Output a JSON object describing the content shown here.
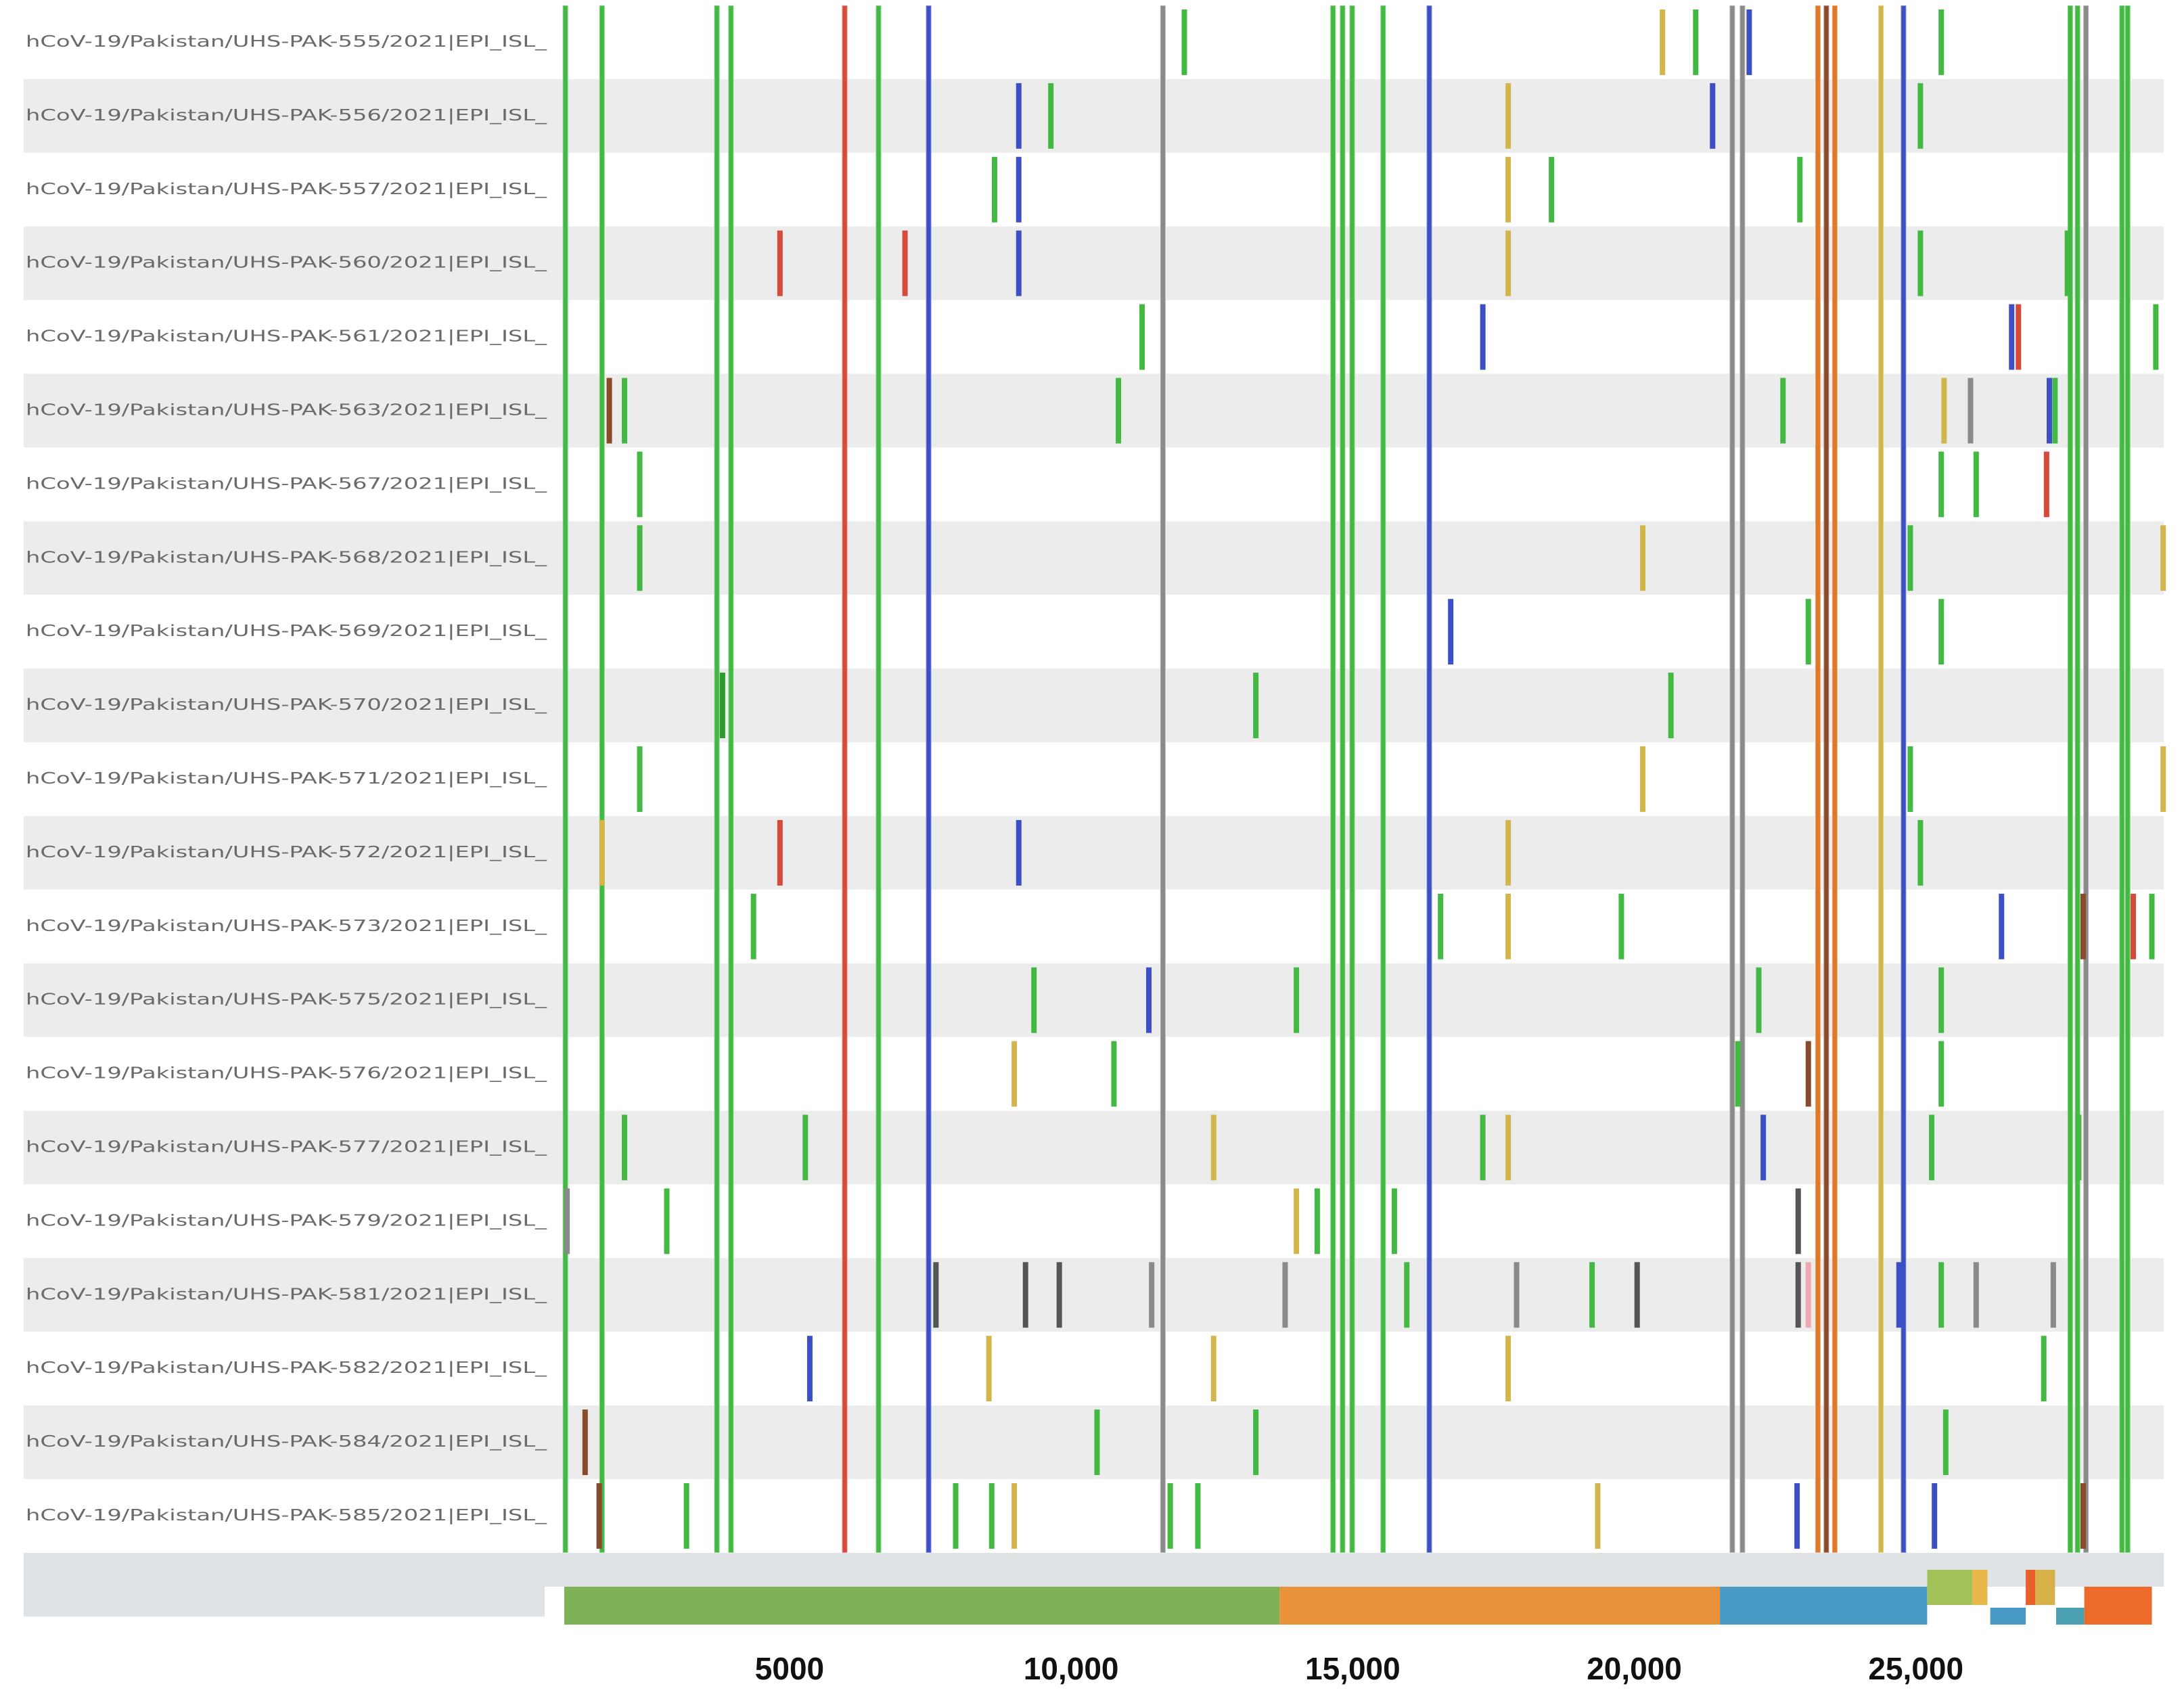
{
  "chart_data": {
    "type": "mutation-map",
    "xlim": [
      1000,
      29400
    ],
    "xticks": [
      5000,
      {
        "value": 10000,
        "label": "10,000"
      },
      {
        "value": 15000,
        "label": "15,000"
      },
      {
        "value": 20000,
        "label": "20,000"
      },
      {
        "value": 25000,
        "label": "25,000"
      }
    ],
    "shared": [
      {
        "pos": 1020,
        "color": "#43b943"
      },
      {
        "pos": 1670,
        "color": "#43b943"
      },
      {
        "pos": 3710,
        "color": "#43b943"
      },
      {
        "pos": 3960,
        "color": "#43b943"
      },
      {
        "pos": 5980,
        "color": "#d64a3c"
      },
      {
        "pos": 6580,
        "color": "#43b943"
      },
      {
        "pos": 7470,
        "color": "#3c4fc4"
      },
      {
        "pos": 11630,
        "color": "#8a8a8a"
      },
      {
        "pos": 14650,
        "color": "#43b943"
      },
      {
        "pos": 14820,
        "color": "#43b943"
      },
      {
        "pos": 14990,
        "color": "#43b943"
      },
      {
        "pos": 15540,
        "color": "#43b943"
      },
      {
        "pos": 16360,
        "color": "#3c4fc4"
      },
      {
        "pos": 21740,
        "color": "#8a8a8a"
      },
      {
        "pos": 21920,
        "color": "#8a8a8a"
      },
      {
        "pos": 23260,
        "color": "#e0782a"
      },
      {
        "pos": 23410,
        "color": "#8a4a2c"
      },
      {
        "pos": 23560,
        "color": "#e0782a"
      },
      {
        "pos": 24380,
        "color": "#d2b64c"
      },
      {
        "pos": 24780,
        "color": "#3c4fc4"
      },
      {
        "pos": 27740,
        "color": "#43b943"
      },
      {
        "pos": 27870,
        "color": "#43b943"
      },
      {
        "pos": 28020,
        "color": "#8a8a8a"
      },
      {
        "pos": 28660,
        "color": "#43b943"
      },
      {
        "pos": 28760,
        "color": "#43b943"
      }
    ],
    "rows": [
      {
        "label": "hCoV-19/Pakistan/UHS-PAK-555/2021|EPI_ISL_",
        "mutations": [
          {
            "pos": 12010,
            "color": "#43b943"
          },
          {
            "pos": 20500,
            "color": "#d2b64c"
          },
          {
            "pos": 21090,
            "color": "#43b943"
          },
          {
            "pos": 22040,
            "color": "#3c4fc4"
          },
          {
            "pos": 25450,
            "color": "#43b943"
          }
        ]
      },
      {
        "label": "hCoV-19/Pakistan/UHS-PAK-556/2021|EPI_ISL_",
        "mutations": [
          {
            "pos": 9070,
            "color": "#3c4fc4"
          },
          {
            "pos": 9640,
            "color": "#43b943"
          },
          {
            "pos": 17760,
            "color": "#d2b64c"
          },
          {
            "pos": 21390,
            "color": "#3c4fc4"
          },
          {
            "pos": 25080,
            "color": "#43b943"
          }
        ]
      },
      {
        "label": "hCoV-19/Pakistan/UHS-PAK-557/2021|EPI_ISL_",
        "mutations": [
          {
            "pos": 8640,
            "color": "#43b943"
          },
          {
            "pos": 9070,
            "color": "#3c4fc4"
          },
          {
            "pos": 17760,
            "color": "#d2b64c"
          },
          {
            "pos": 18530,
            "color": "#43b943"
          },
          {
            "pos": 22940,
            "color": "#43b943"
          }
        ]
      },
      {
        "label": "hCoV-19/Pakistan/UHS-PAK-560/2021|EPI_ISL_",
        "mutations": [
          {
            "pos": 4830,
            "color": "#d64a3c"
          },
          {
            "pos": 7050,
            "color": "#d64a3c"
          },
          {
            "pos": 9070,
            "color": "#3c4fc4"
          },
          {
            "pos": 17760,
            "color": "#d2b64c"
          },
          {
            "pos": 25080,
            "color": "#43b943"
          },
          {
            "pos": 27690,
            "color": "#43b943"
          }
        ]
      },
      {
        "label": "hCoV-19/Pakistan/UHS-PAK-561/2021|EPI_ISL_",
        "mutations": [
          {
            "pos": 11260,
            "color": "#43b943"
          },
          {
            "pos": 17310,
            "color": "#3c4fc4"
          },
          {
            "pos": 26700,
            "color": "#3c4fc4"
          },
          {
            "pos": 26820,
            "color": "#d64a3c"
          },
          {
            "pos": 29260,
            "color": "#43b943"
          }
        ]
      },
      {
        "label": "hCoV-19/Pakistan/UHS-PAK-563/2021|EPI_ISL_",
        "mutations": [
          {
            "pos": 1800,
            "color": "#8a4a2c"
          },
          {
            "pos": 2070,
            "color": "#43b943"
          },
          {
            "pos": 10840,
            "color": "#43b943"
          },
          {
            "pos": 22640,
            "color": "#43b943"
          },
          {
            "pos": 25500,
            "color": "#d2b64c"
          },
          {
            "pos": 25970,
            "color": "#8a8a8a"
          },
          {
            "pos": 27370,
            "color": "#3c4fc4"
          },
          {
            "pos": 27470,
            "color": "#43b943"
          }
        ]
      },
      {
        "label": "hCoV-19/Pakistan/UHS-PAK-567/2021|EPI_ISL_",
        "mutations": [
          {
            "pos": 2340,
            "color": "#43b943"
          },
          {
            "pos": 25450,
            "color": "#43b943"
          },
          {
            "pos": 26070,
            "color": "#43b943"
          },
          {
            "pos": 27320,
            "color": "#d64a3c"
          }
        ]
      },
      {
        "label": "hCoV-19/Pakistan/UHS-PAK-568/2021|EPI_ISL_",
        "mutations": [
          {
            "pos": 2340,
            "color": "#43b943"
          },
          {
            "pos": 20150,
            "color": "#d2b64c"
          },
          {
            "pos": 24900,
            "color": "#43b943"
          },
          {
            "pos": 29390,
            "color": "#d2b64c"
          }
        ]
      },
      {
        "label": "hCoV-19/Pakistan/UHS-PAK-569/2021|EPI_ISL_",
        "mutations": [
          {
            "pos": 16740,
            "color": "#3c4fc4"
          },
          {
            "pos": 23090,
            "color": "#43b943"
          },
          {
            "pos": 25450,
            "color": "#43b943"
          }
        ]
      },
      {
        "label": "hCoV-19/Pakistan/UHS-PAK-570/2021|EPI_ISL_",
        "mutations": [
          {
            "pos": 3810,
            "color": "#2e9a2e"
          },
          {
            "pos": 13280,
            "color": "#43b943"
          },
          {
            "pos": 20650,
            "color": "#43b943"
          }
        ]
      },
      {
        "label": "hCoV-19/Pakistan/UHS-PAK-571/2021|EPI_ISL_",
        "mutations": [
          {
            "pos": 2340,
            "color": "#43b943"
          },
          {
            "pos": 20150,
            "color": "#d2b64c"
          },
          {
            "pos": 24900,
            "color": "#43b943"
          },
          {
            "pos": 29390,
            "color": "#d2b64c"
          }
        ]
      },
      {
        "label": "hCoV-19/Pakistan/UHS-PAK-572/2021|EPI_ISL_",
        "mutations": [
          {
            "pos": 1670,
            "color": "#d2b64c"
          },
          {
            "pos": 4830,
            "color": "#d64a3c"
          },
          {
            "pos": 9070,
            "color": "#3c4fc4"
          },
          {
            "pos": 17760,
            "color": "#d2b64c"
          },
          {
            "pos": 25080,
            "color": "#43b943"
          }
        ]
      },
      {
        "label": "hCoV-19/Pakistan/UHS-PAK-573/2021|EPI_ISL_",
        "mutations": [
          {
            "pos": 4360,
            "color": "#43b943"
          },
          {
            "pos": 16560,
            "color": "#43b943"
          },
          {
            "pos": 17760,
            "color": "#d2b64c"
          },
          {
            "pos": 19770,
            "color": "#43b943"
          },
          {
            "pos": 26520,
            "color": "#3c4fc4"
          },
          {
            "pos": 27970,
            "color": "#8a4a2c"
          },
          {
            "pos": 28860,
            "color": "#d64a3c"
          },
          {
            "pos": 29190,
            "color": "#43b943"
          }
        ]
      },
      {
        "label": "hCoV-19/Pakistan/UHS-PAK-575/2021|EPI_ISL_",
        "mutations": [
          {
            "pos": 9340,
            "color": "#43b943"
          },
          {
            "pos": 11380,
            "color": "#3c4fc4"
          },
          {
            "pos": 14000,
            "color": "#43b943"
          },
          {
            "pos": 22210,
            "color": "#43b943"
          },
          {
            "pos": 25450,
            "color": "#43b943"
          }
        ]
      },
      {
        "label": "hCoV-19/Pakistan/UHS-PAK-576/2021|EPI_ISL_",
        "mutations": [
          {
            "pos": 8990,
            "color": "#d2b64c"
          },
          {
            "pos": 10760,
            "color": "#43b943"
          },
          {
            "pos": 21840,
            "color": "#43b943"
          },
          {
            "pos": 23090,
            "color": "#8a4a2c"
          },
          {
            "pos": 25450,
            "color": "#43b943"
          }
        ]
      },
      {
        "label": "hCoV-19/Pakistan/UHS-PAK-577/2021|EPI_ISL_",
        "mutations": [
          {
            "pos": 2070,
            "color": "#43b943"
          },
          {
            "pos": 5280,
            "color": "#43b943"
          },
          {
            "pos": 12530,
            "color": "#d2b64c"
          },
          {
            "pos": 17310,
            "color": "#43b943"
          },
          {
            "pos": 17760,
            "color": "#d2b64c"
          },
          {
            "pos": 22290,
            "color": "#3c4fc4"
          },
          {
            "pos": 25280,
            "color": "#43b943"
          },
          {
            "pos": 27890,
            "color": "#43b943"
          }
        ]
      },
      {
        "label": "hCoV-19/Pakistan/UHS-PAK-579/2021|EPI_ISL_",
        "mutations": [
          {
            "pos": 1050,
            "color": "#8a8a8a"
          },
          {
            "pos": 2820,
            "color": "#43b943"
          },
          {
            "pos": 14000,
            "color": "#d2b64c"
          },
          {
            "pos": 14370,
            "color": "#43b943"
          },
          {
            "pos": 15740,
            "color": "#43b943"
          },
          {
            "pos": 22910,
            "color": "#555555"
          }
        ]
      },
      {
        "label": "hCoV-19/Pakistan/UHS-PAK-581/2021|EPI_ISL_",
        "mutations": [
          {
            "pos": 7600,
            "color": "#555555"
          },
          {
            "pos": 9190,
            "color": "#555555"
          },
          {
            "pos": 9790,
            "color": "#555555"
          },
          {
            "pos": 11430,
            "color": "#8a8a8a"
          },
          {
            "pos": 13800,
            "color": "#8a8a8a"
          },
          {
            "pos": 15960,
            "color": "#43b943"
          },
          {
            "pos": 17910,
            "color": "#8a8a8a"
          },
          {
            "pos": 19250,
            "color": "#43b943"
          },
          {
            "pos": 20050,
            "color": "#555555"
          },
          {
            "pos": 22910,
            "color": "#555555"
          },
          {
            "pos": 23090,
            "color": "#f2a7b5"
          },
          {
            "pos": 24700,
            "color": "#3c4fc4"
          },
          {
            "pos": 25450,
            "color": "#43b943"
          },
          {
            "pos": 26070,
            "color": "#8a8a8a"
          },
          {
            "pos": 27440,
            "color": "#8a8a8a"
          }
        ]
      },
      {
        "label": "hCoV-19/Pakistan/UHS-PAK-582/2021|EPI_ISL_",
        "mutations": [
          {
            "pos": 5360,
            "color": "#3c4fc4"
          },
          {
            "pos": 8540,
            "color": "#d2b64c"
          },
          {
            "pos": 12530,
            "color": "#d2b64c"
          },
          {
            "pos": 17760,
            "color": "#d2b64c"
          },
          {
            "pos": 27270,
            "color": "#43b943"
          }
        ]
      },
      {
        "label": "hCoV-19/Pakistan/UHS-PAK-584/2021|EPI_ISL_",
        "mutations": [
          {
            "pos": 1370,
            "color": "#8a4a2c"
          },
          {
            "pos": 10460,
            "color": "#43b943"
          },
          {
            "pos": 13280,
            "color": "#43b943"
          },
          {
            "pos": 25530,
            "color": "#43b943"
          }
        ]
      },
      {
        "label": "hCoV-19/Pakistan/UHS-PAK-585/2021|EPI_ISL_",
        "mutations": [
          {
            "pos": 1620,
            "color": "#8a4a2c"
          },
          {
            "pos": 3170,
            "color": "#43b943"
          },
          {
            "pos": 7950,
            "color": "#43b943"
          },
          {
            "pos": 8590,
            "color": "#43b943"
          },
          {
            "pos": 8990,
            "color": "#d2b64c"
          },
          {
            "pos": 11760,
            "color": "#43b943"
          },
          {
            "pos": 12250,
            "color": "#43b943"
          },
          {
            "pos": 19350,
            "color": "#d2b64c"
          },
          {
            "pos": 22890,
            "color": "#3c4fc4"
          },
          {
            "pos": 25330,
            "color": "#3c4fc4"
          },
          {
            "pos": 27970,
            "color": "#8a4a2c"
          }
        ]
      }
    ],
    "genes": [
      {
        "start": 1000,
        "end": 13700,
        "color": "#7db356",
        "lane": "main"
      },
      {
        "start": 13700,
        "end": 21520,
        "color": "#e8933a",
        "lane": "main"
      },
      {
        "start": 21520,
        "end": 25200,
        "color": "#4a9ac6",
        "lane": "main"
      },
      {
        "start": 25200,
        "end": 26000,
        "color": "#a4c25a",
        "lane": "upper"
      },
      {
        "start": 26000,
        "end": 26270,
        "color": "#e8b84a",
        "lane": "upper"
      },
      {
        "start": 26320,
        "end": 26950,
        "color": "#4a9ac6",
        "lane": "lower"
      },
      {
        "start": 26950,
        "end": 27120,
        "color": "#e8602a",
        "lane": "upper"
      },
      {
        "start": 27120,
        "end": 27470,
        "color": "#d8b04a",
        "lane": "upper"
      },
      {
        "start": 27490,
        "end": 27990,
        "color": "#4aa0b0",
        "lane": "lower"
      },
      {
        "start": 27990,
        "end": 29190,
        "color": "#ec6a2a",
        "lane": "main"
      }
    ]
  }
}
